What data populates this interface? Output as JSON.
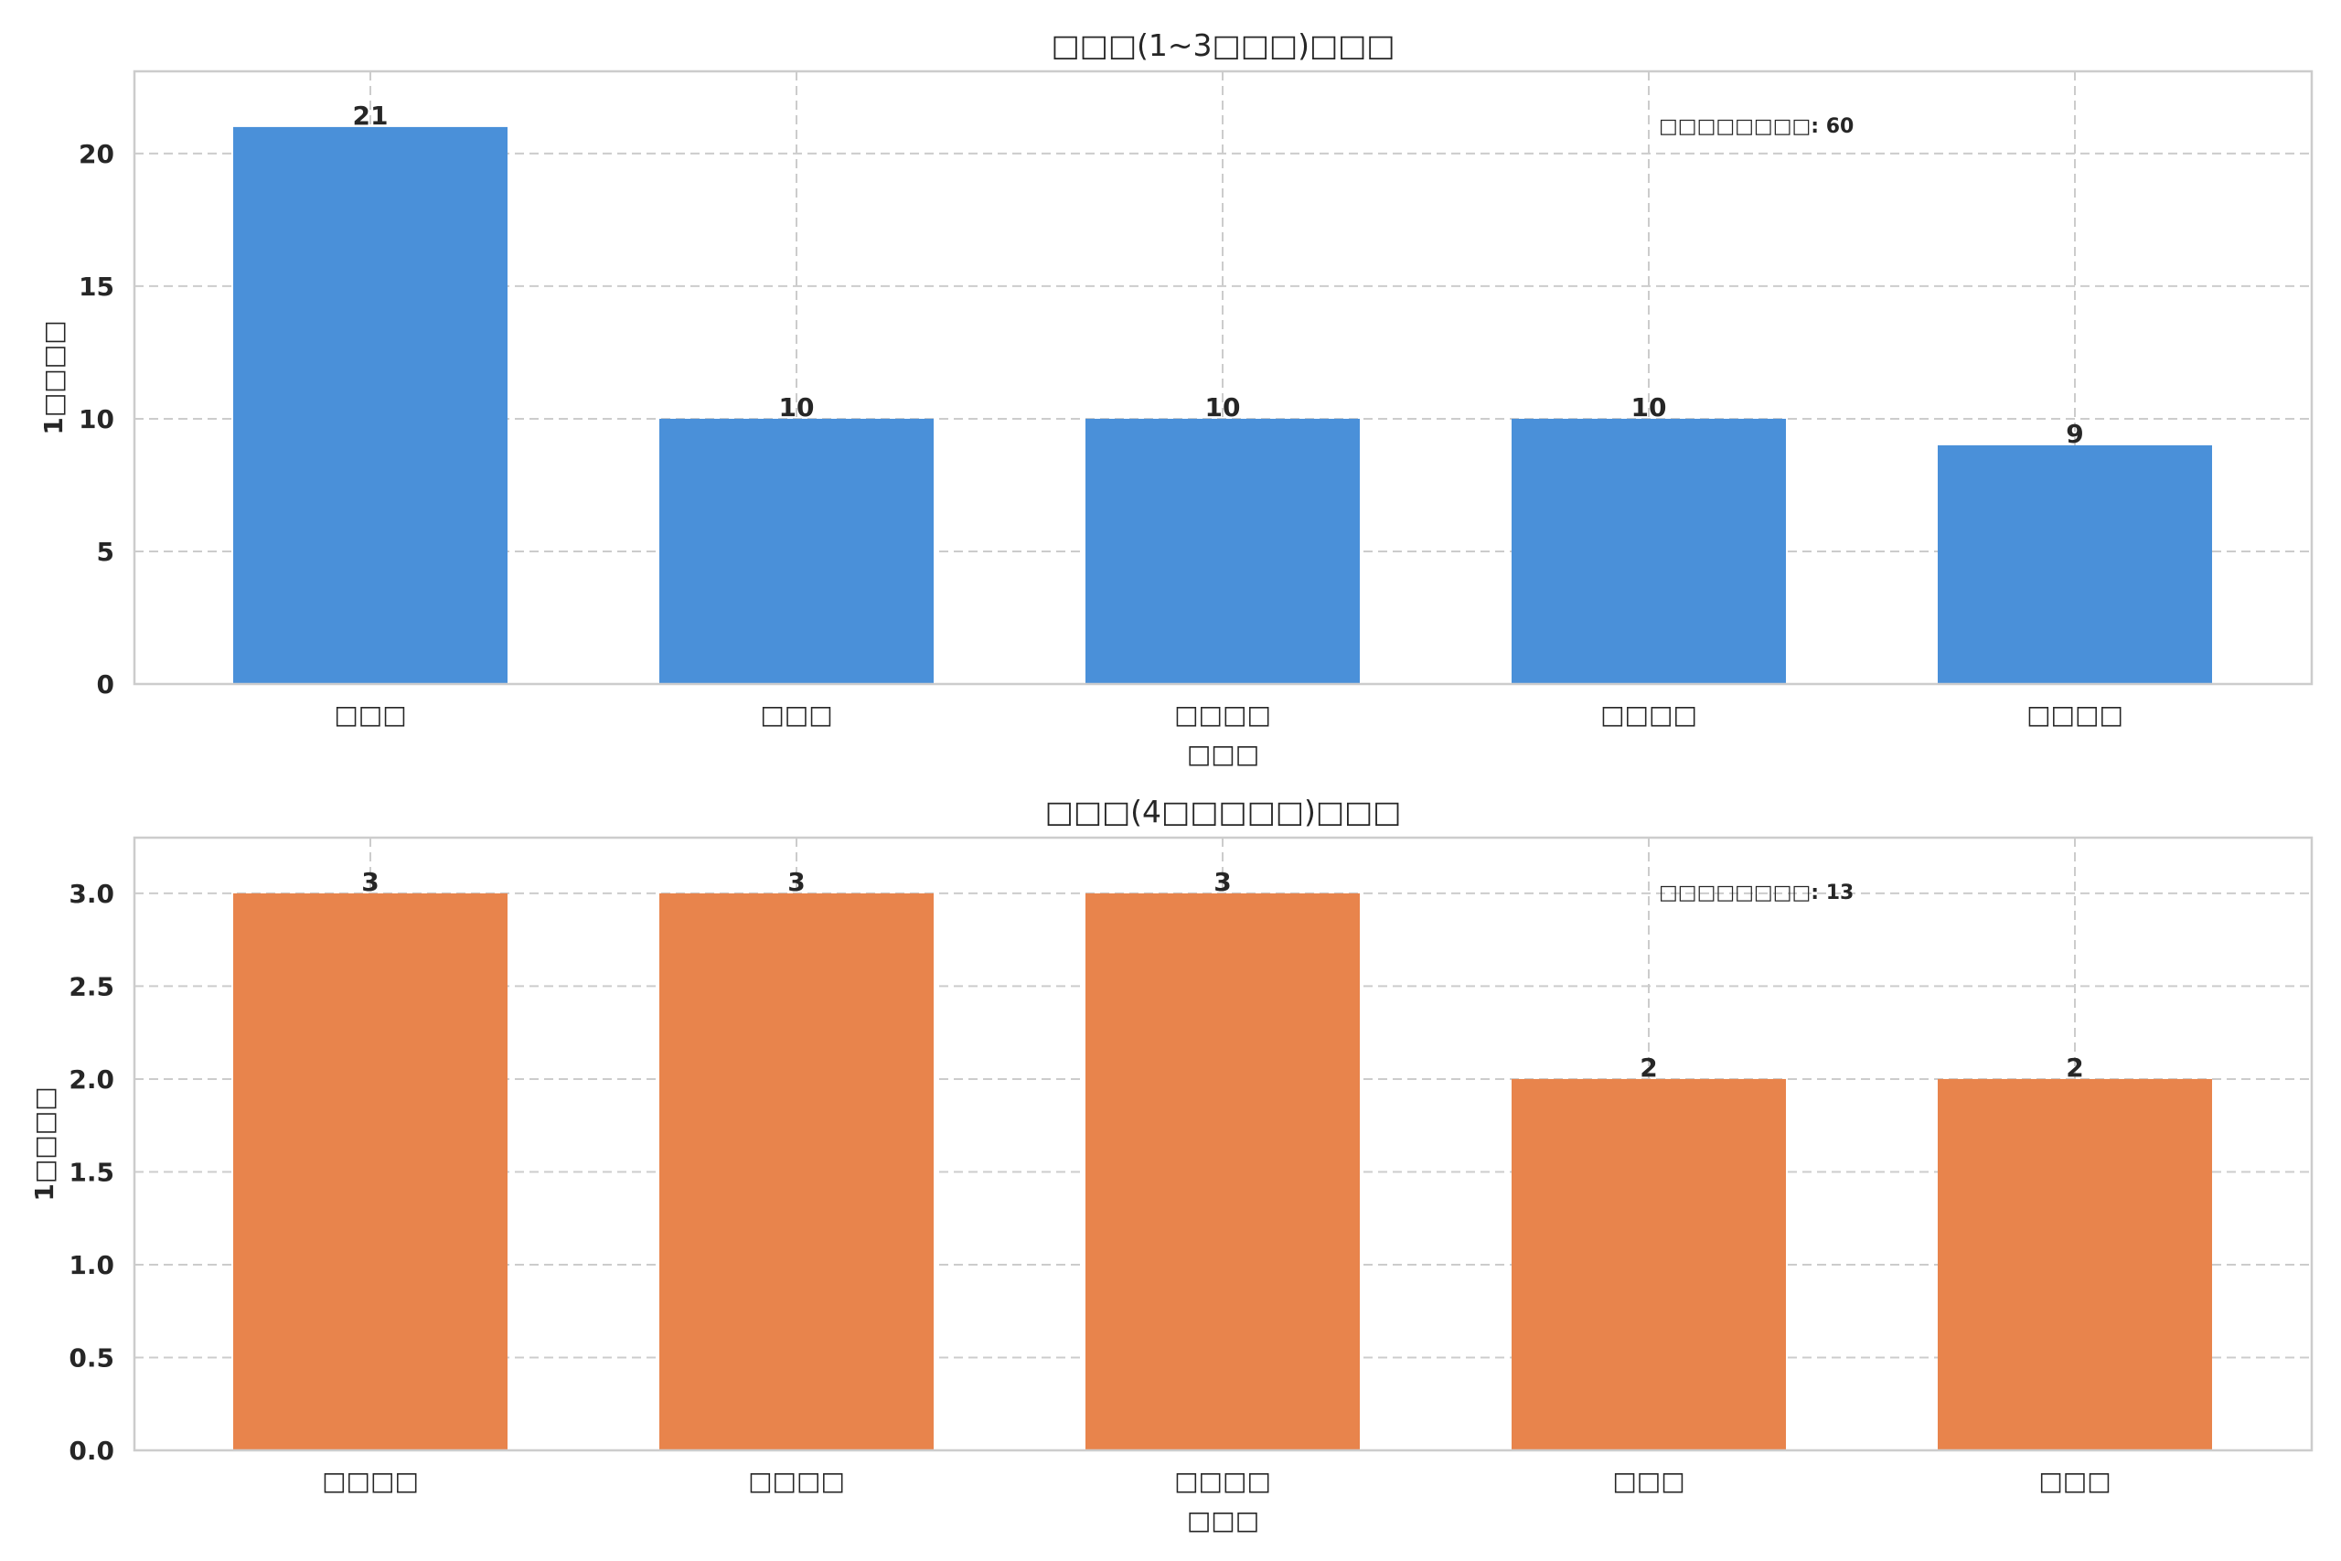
{
  "chart_data": [
    {
      "type": "bar",
      "title": "□□□(1~3□□□)□□□",
      "xlabel": "□□□",
      "ylabel": "1□□□□",
      "categories": [
        "□□□",
        "□□□",
        "□□□□",
        "□□□□",
        "□□□□"
      ],
      "values": [
        21,
        10,
        10,
        10,
        9
      ],
      "ylim": [
        0,
        23.1
      ],
      "yticks": [
        0,
        5,
        10,
        15,
        20
      ],
      "ytick_labels": [
        "0",
        "5",
        "10",
        "15",
        "20"
      ],
      "annotation": "□□□□□□□□: 60",
      "color": "#4A90D9",
      "grid": true
    },
    {
      "type": "bar",
      "title": "□□□(4□□□□□)□□□",
      "xlabel": "□□□",
      "ylabel": "1□□□□",
      "categories": [
        "□□□□",
        "□□□□",
        "□□□□",
        "□□□",
        "□□□"
      ],
      "values": [
        3,
        3,
        3,
        2,
        2
      ],
      "ylim": [
        0,
        3.3
      ],
      "yticks": [
        0,
        0.5,
        1,
        1.5,
        2,
        2.5,
        3
      ],
      "ytick_labels": [
        "0.0",
        "0.5",
        "1.0",
        "1.5",
        "2.0",
        "2.5",
        "3.0"
      ],
      "annotation": "□□□□□□□□: 13",
      "color": "#E8844C",
      "grid": true
    }
  ]
}
